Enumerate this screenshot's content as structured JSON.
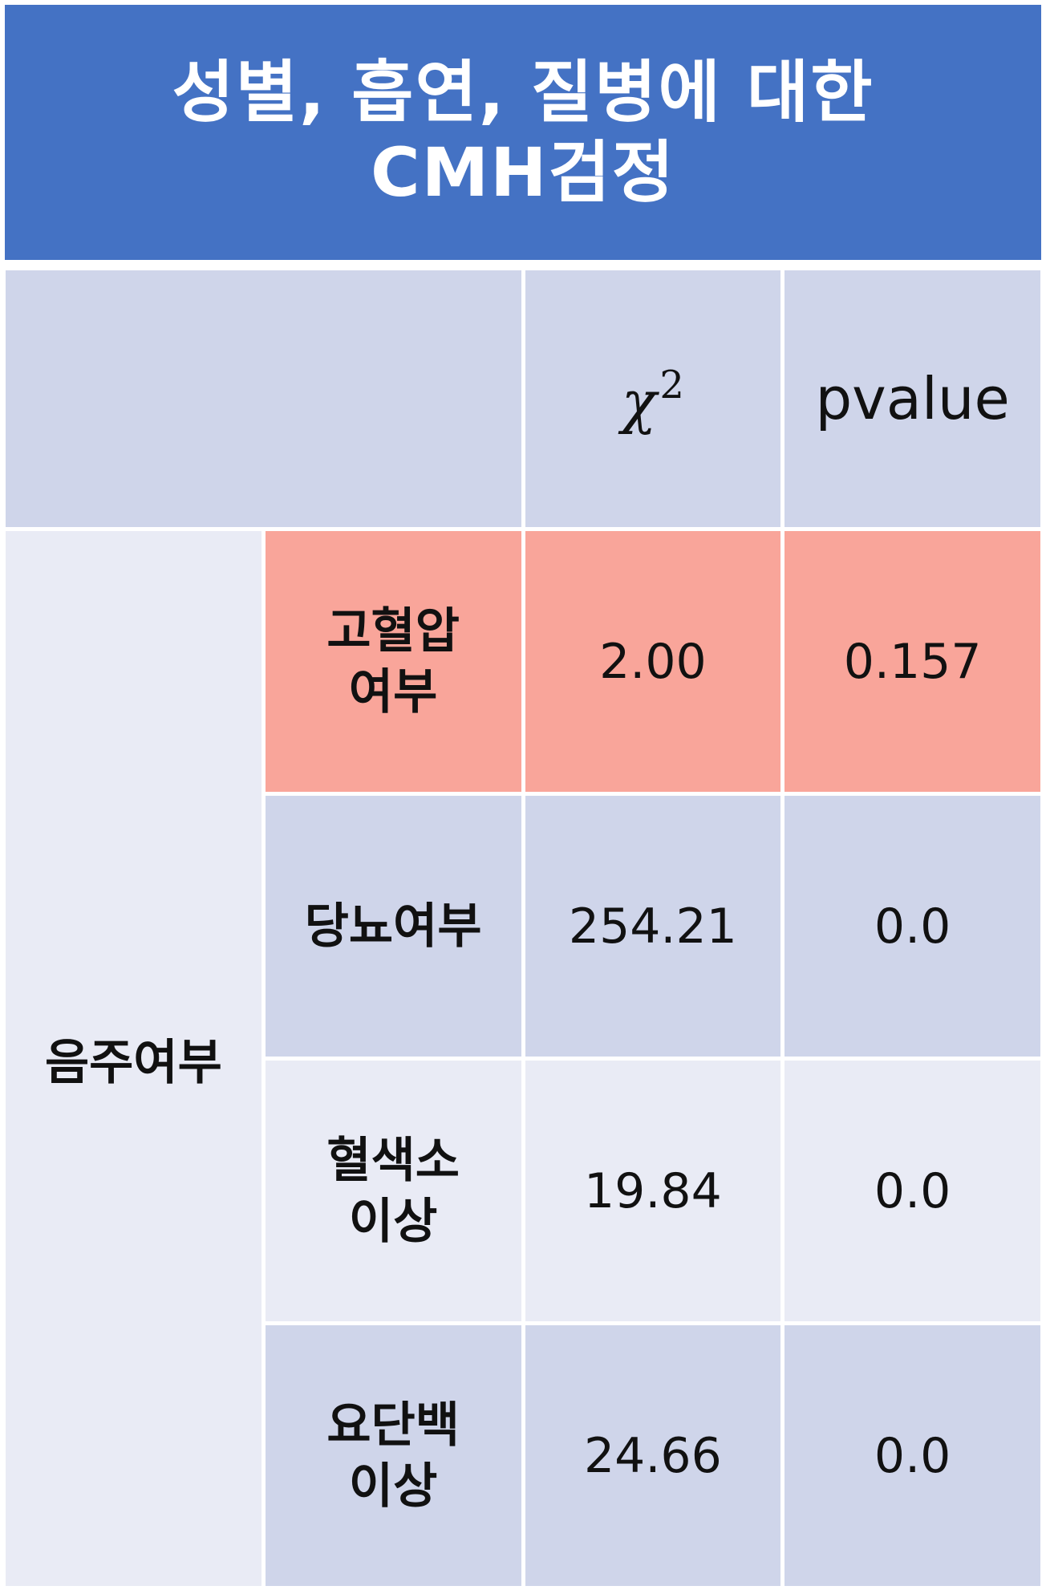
{
  "title": {
    "line1": "성별, 흡연, 질병에 대한",
    "line2": "CMH검정"
  },
  "table": {
    "header": {
      "chi_symbol": "χ",
      "chi_exp": "2",
      "pvalue": "pvalue"
    },
    "group_label": "음주여부",
    "rows": [
      {
        "label_line1": "고혈압",
        "label_line2": "여부",
        "chi2": "2.00",
        "pvalue": "0.157"
      },
      {
        "label_line1": "당뇨여부",
        "label_line2": "",
        "chi2": "254.21",
        "pvalue": "0.0"
      },
      {
        "label_line1": "혈색소",
        "label_line2": "이상",
        "chi2": "19.84",
        "pvalue": "0.0"
      },
      {
        "label_line1": "요단백",
        "label_line2": "이상",
        "chi2": "24.66",
        "pvalue": "0.0"
      }
    ]
  },
  "colors": {
    "header_bg": "#4472c4",
    "cell_dark": "#cfd5ea",
    "cell_light": "#e9ebf5",
    "highlight": "#f9a59a"
  }
}
